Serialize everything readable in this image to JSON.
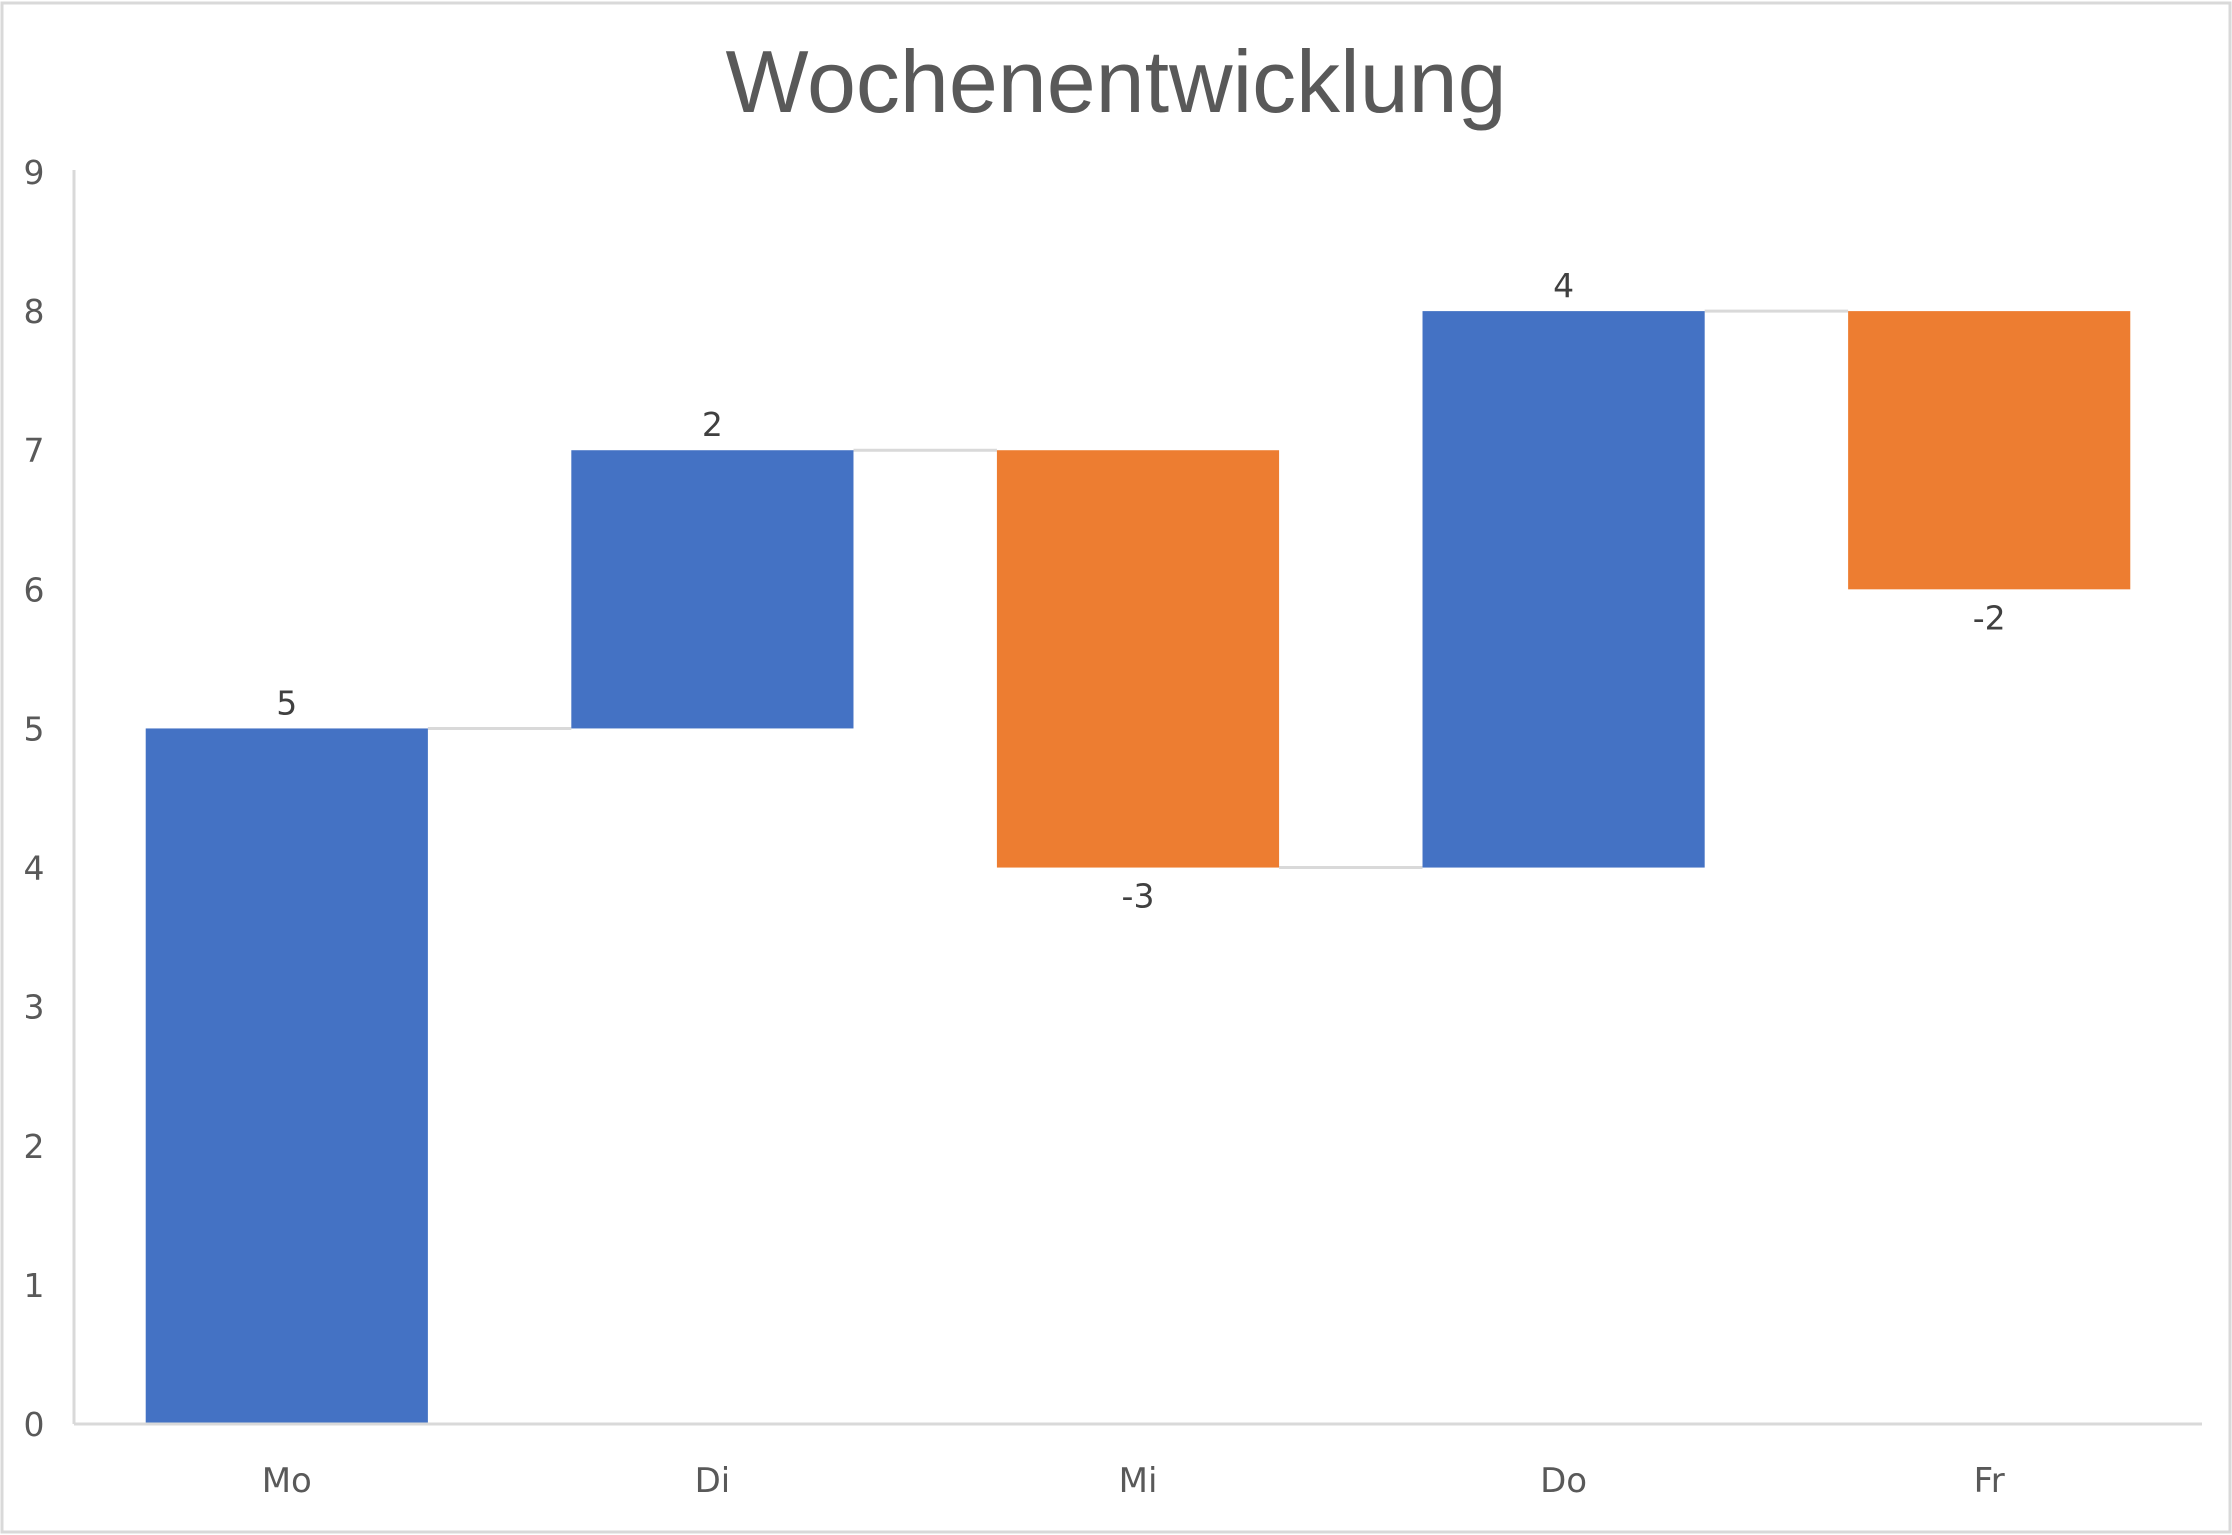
{
  "chart_data": {
    "type": "bar",
    "subtype": "waterfall",
    "title": "Wochenentwicklung",
    "xlabel": "",
    "ylabel": "",
    "categories": [
      "Mo",
      "Di",
      "Mi",
      "Do",
      "Fr"
    ],
    "values": [
      5,
      2,
      -3,
      4,
      -2
    ],
    "data_labels": [
      "5",
      "2",
      "-3",
      "4",
      "-2"
    ],
    "ylim": [
      0,
      9
    ],
    "yticks": [
      0,
      1,
      2,
      3,
      4,
      5,
      6,
      7,
      8,
      9
    ],
    "ytick_labels": [
      "0",
      "1",
      "2",
      "3",
      "4",
      "5",
      "6",
      "7",
      "8",
      "9"
    ],
    "grid": false,
    "connector_lines": true,
    "legend": "none",
    "colors": {
      "increase": "#4472C4",
      "decrease": "#ED7D31",
      "axis": "#D9D9D9",
      "connector": "#D9D9D9",
      "frame": "#D9D9D9",
      "title": "#595959",
      "text": "#595959"
    }
  }
}
